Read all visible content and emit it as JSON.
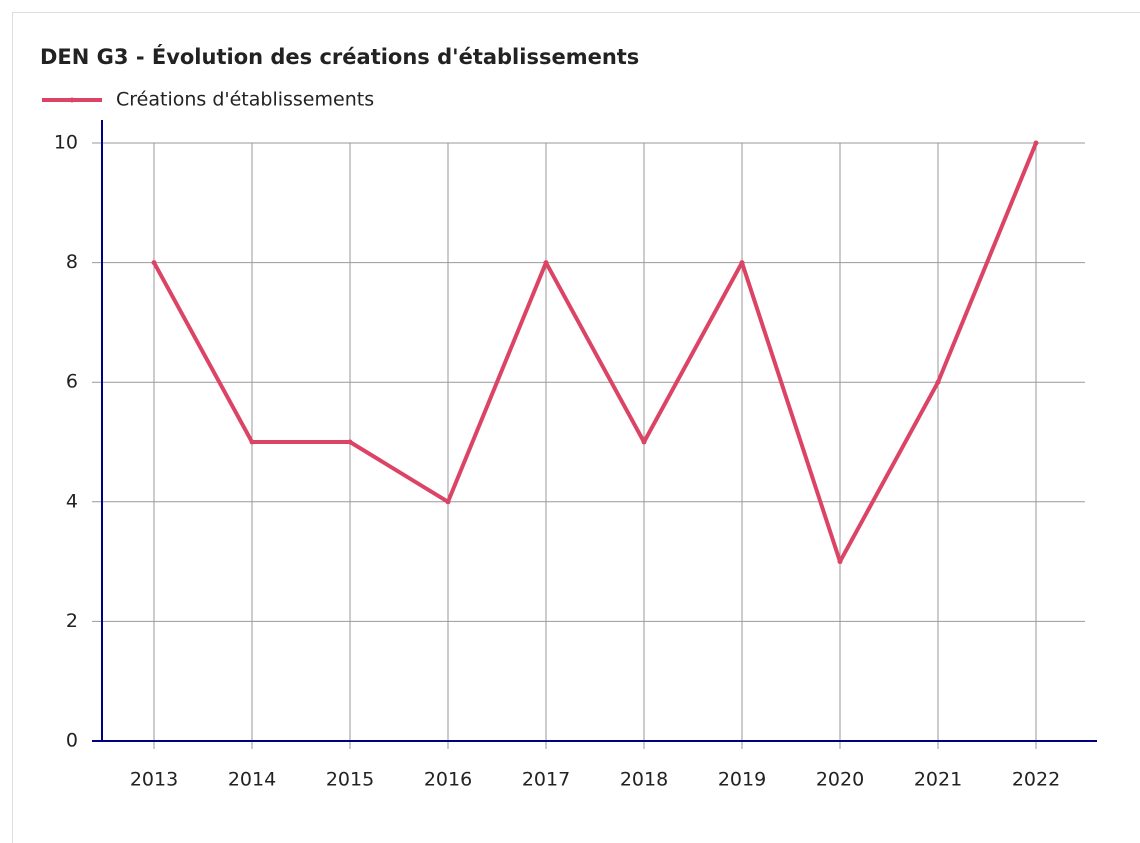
{
  "chart_data": {
    "type": "line",
    "title": "DEN G3 - Évolution des créations d'établissements",
    "categories": [
      "2013",
      "2014",
      "2015",
      "2016",
      "2017",
      "2018",
      "2019",
      "2020",
      "2021",
      "2022"
    ],
    "series": [
      {
        "name": "Créations d'établissements",
        "color": "#dc4466",
        "values": [
          8,
          5,
          5,
          4,
          8,
          5,
          8,
          3,
          6,
          10
        ]
      }
    ],
    "ylim": [
      0,
      10
    ],
    "yticks": [
      0,
      2,
      4,
      6,
      8,
      10
    ],
    "grid": true,
    "legend": "top-left"
  }
}
